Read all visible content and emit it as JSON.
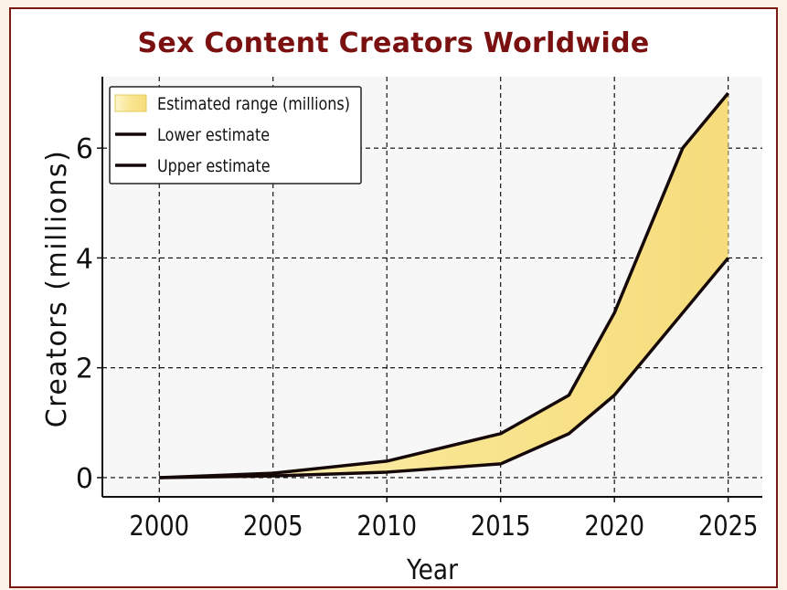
{
  "chart_data": {
    "type": "area",
    "title": "Sex Content Creators Worldwide",
    "xlabel": "Year",
    "ylabel": "Creators (millions)",
    "xlim": [
      1997.5,
      2026.5
    ],
    "ylim": [
      -0.35,
      7.3
    ],
    "xticks": [
      2000,
      2005,
      2010,
      2015,
      2020,
      2025
    ],
    "yticks": [
      0,
      2,
      4,
      6
    ],
    "grid": true,
    "legend_position": "top-left",
    "legend": [
      "Estimated range (millions)",
      "Lower estimate",
      "Upper estimate"
    ],
    "x": [
      2000,
      2005,
      2010,
      2015,
      2018,
      2020,
      2023,
      2025
    ],
    "series": [
      {
        "name": "Lower estimate",
        "values": [
          0.0,
          0.03,
          0.1,
          0.25,
          0.8,
          1.5,
          3.0,
          4.0
        ]
      },
      {
        "name": "Upper estimate",
        "values": [
          0.0,
          0.08,
          0.3,
          0.8,
          1.5,
          3.0,
          6.0,
          7.0
        ]
      }
    ],
    "colors": {
      "fill": "#f7df82",
      "line": "#150808",
      "title": "#7a1010",
      "grid": "#000000",
      "frame": "#7a1a12"
    }
  }
}
